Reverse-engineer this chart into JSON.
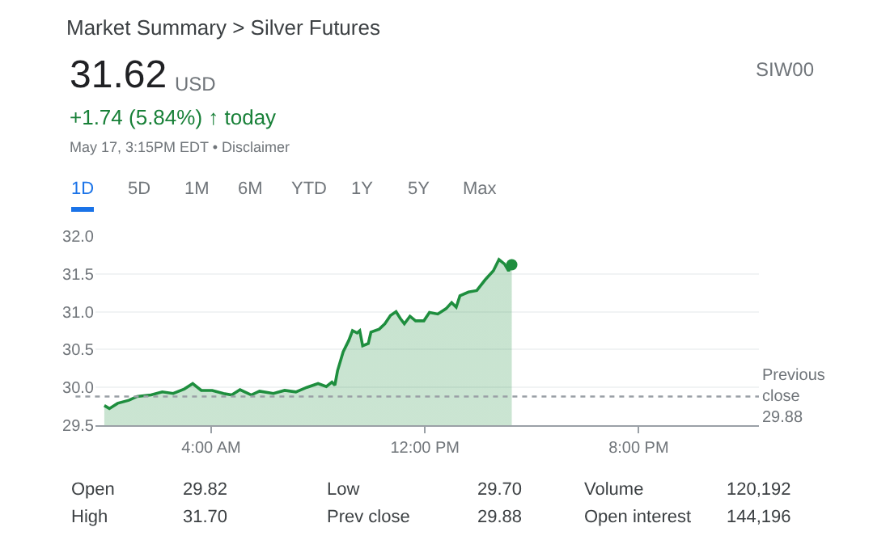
{
  "chart_data": {
    "type": "area",
    "title": "Market Summary > Silver Futures",
    "annotations": [
      "31.62",
      "USD",
      "+1.74 (5.84%) ↑ today",
      "May 17, 3:15PM EDT • Disclaimer",
      "SIW00",
      "1D",
      "5D",
      "1M",
      "6M",
      "YTD",
      "1Y",
      "5Y",
      "Max",
      "Open",
      "29.82",
      "Low",
      "29.70",
      "Volume",
      "120,192",
      "High",
      "31.70",
      "Prev close",
      "29.88",
      "Open interest",
      "144,196"
    ],
    "x": [
      0,
      0.19,
      0.5,
      0.92,
      1.23,
      1.75,
      2.17,
      2.58,
      3.0,
      3.31,
      3.63,
      4.04,
      4.46,
      4.77,
      5.08,
      5.5,
      5.81,
      6.33,
      6.75,
      7.17,
      7.58,
      8.0,
      8.31,
      8.52,
      8.63,
      8.73,
      8.94,
      9.15,
      9.29,
      9.46,
      9.56,
      9.67,
      9.88,
      9.98,
      10.29,
      10.5,
      10.71,
      10.92,
      11.08,
      11.23,
      11.44,
      11.65,
      11.96,
      12.17,
      12.48,
      12.79,
      13.0,
      13.17,
      13.31,
      13.63,
      13.94,
      14.25,
      14.56,
      14.77,
      14.98,
      15.13,
      15.25
    ],
    "series": [
      {
        "color": "#1e8e3e",
        "values": [
          29.76,
          29.72,
          29.79,
          29.83,
          29.88,
          29.9,
          29.94,
          29.92,
          29.98,
          30.05,
          29.96,
          29.96,
          29.92,
          29.9,
          29.97,
          29.9,
          29.95,
          29.92,
          29.96,
          29.94,
          30.0,
          30.05,
          30.01,
          30.07,
          30.03,
          30.22,
          30.47,
          30.62,
          30.75,
          30.72,
          30.75,
          30.55,
          30.58,
          30.73,
          30.77,
          30.84,
          30.95,
          31.0,
          30.91,
          30.84,
          30.94,
          30.88,
          30.88,
          30.99,
          30.97,
          31.04,
          31.12,
          31.06,
          31.21,
          31.26,
          31.28,
          31.42,
          31.54,
          31.69,
          31.63,
          31.54,
          31.62
        ]
      }
    ],
    "xlim": [
      -0.33,
      24.5
    ],
    "xticks": [
      {
        "value": 4,
        "label": "4:00 AM"
      },
      {
        "value": 12,
        "label": "12:00 PM"
      },
      {
        "value": 20,
        "label": "8:00 PM"
      }
    ],
    "ylim": [
      29.5,
      32.0
    ],
    "yticks": [
      {
        "value": 29.5,
        "label": "29.5"
      },
      {
        "value": 30,
        "label": "30.0"
      },
      {
        "value": 30.5,
        "label": "30.5"
      },
      {
        "value": 31,
        "label": "31.0"
      },
      {
        "value": 31.5,
        "label": "31.5"
      },
      {
        "value": 32,
        "label": "32.0"
      }
    ],
    "ref_lines": [
      {
        "axis": "y",
        "value": 29.88,
        "label": "Previous close",
        "color": "#9aa0a6",
        "line_style": "dotted"
      }
    ],
    "grid": "y",
    "marker": "none",
    "line_style": "solid"
  }
}
